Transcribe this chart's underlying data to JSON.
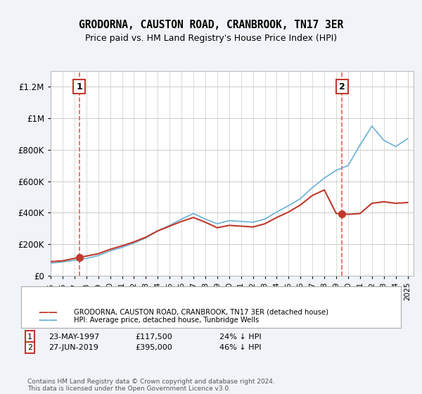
{
  "title": "GRODORNA, CAUSTON ROAD, CRANBROOK, TN17 3ER",
  "subtitle": "Price paid vs. HM Land Registry's House Price Index (HPI)",
  "ylim": [
    0,
    1300000
  ],
  "yticks": [
    0,
    200000,
    400000,
    600000,
    800000,
    1000000,
    1200000
  ],
  "ytick_labels": [
    "£0",
    "£200K",
    "£400K",
    "£600K",
    "£800K",
    "£1M",
    "£1.2M"
  ],
  "years_hpi": [
    1995,
    1996,
    1997,
    1998,
    1999,
    2000,
    2001,
    2002,
    2003,
    2004,
    2005,
    2006,
    2007,
    2008,
    2009,
    2010,
    2011,
    2012,
    2013,
    2014,
    2015,
    2016,
    2017,
    2018,
    2019,
    2020,
    2021,
    2022,
    2023,
    2024,
    2025
  ],
  "hpi_values": [
    80000,
    88000,
    98000,
    110000,
    128000,
    158000,
    180000,
    208000,
    240000,
    285000,
    320000,
    360000,
    395000,
    360000,
    330000,
    350000,
    345000,
    340000,
    360000,
    405000,
    445000,
    490000,
    560000,
    620000,
    670000,
    700000,
    830000,
    950000,
    860000,
    820000,
    870000
  ],
  "sale1_year": 1997.4,
  "sale1_price": 117500,
  "sale2_year": 2019.5,
  "sale2_price": 395000,
  "sale1_label": "1",
  "sale2_label": "2",
  "line_color_hpi": "#6ab0d4",
  "line_color_sale": "#c0392b",
  "dot_color": "#c0392b",
  "dashed_color": "#e74c3c",
  "legend_label1": "GRODORNA, CAUSTON ROAD, CRANBROOK, TN17 3ER (detached house)",
  "legend_label2": "HPI: Average price, detached house, Tunbridge Wells",
  "note1_num": "1",
  "note1_date": "23-MAY-1997",
  "note1_price": "£117,500",
  "note1_hpi": "24% ↓ HPI",
  "note2_num": "2",
  "note2_date": "27-JUN-2019",
  "note2_price": "£395,000",
  "note2_hpi": "46% ↓ HPI",
  "footer": "Contains HM Land Registry data © Crown copyright and database right 2024.\nThis data is licensed under the Open Government Licence v3.0.",
  "bg_color": "#f0f4f8",
  "plot_bg": "#ffffff"
}
